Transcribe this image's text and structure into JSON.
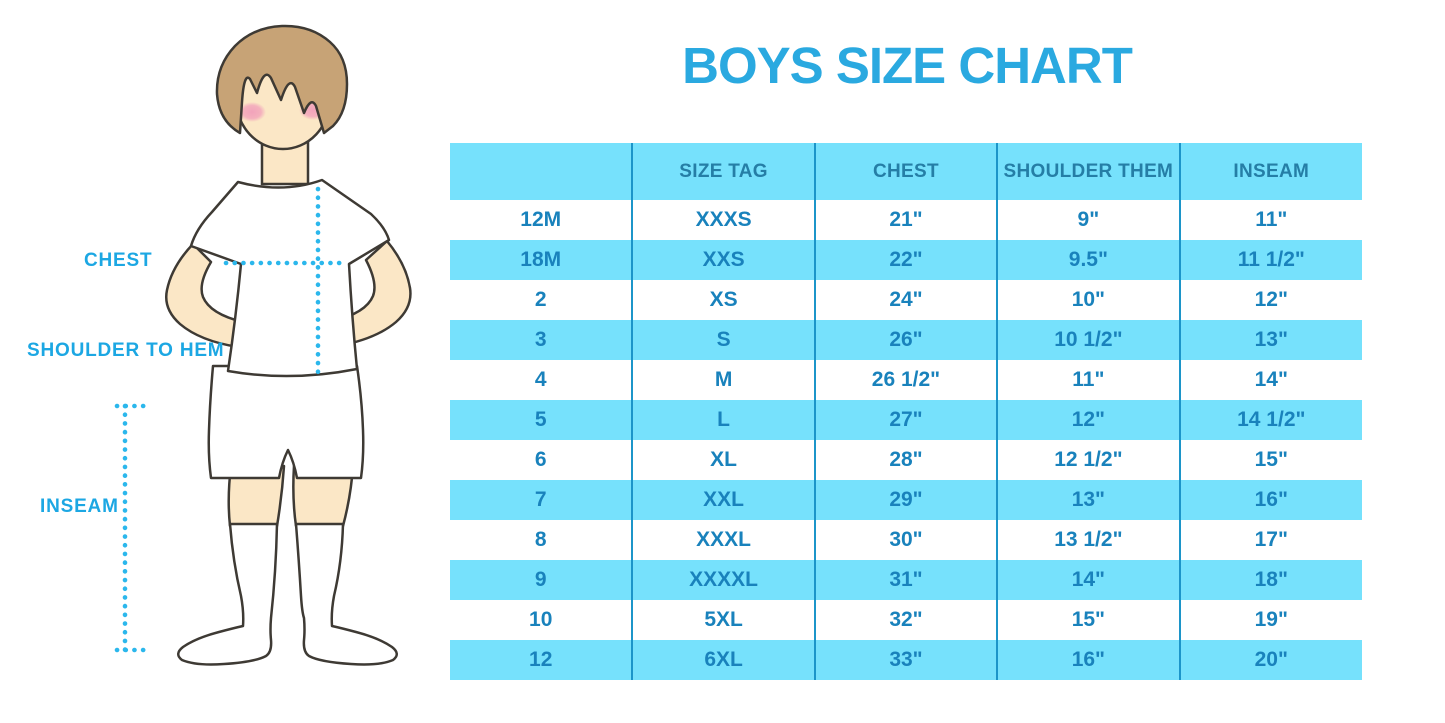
{
  "title": "BOYS SIZE CHART",
  "figure_labels": {
    "chest": "CHEST",
    "shoulder_to_hem": "SHOULDER TO HEM",
    "inseam": "INSEAM"
  },
  "colors": {
    "title_blue": "#2AA9E0",
    "label_blue": "#1CA7E3",
    "dotted_line_cyan": "#2BB7EC",
    "row_blue": "#76E1FC",
    "table_text_blue": "#1982BC",
    "column_divider_blue": "#1C95C9",
    "hair_brown": "#C7A376",
    "skin": "#FBE7C6",
    "blush_pink": "#F2A3BB"
  },
  "chart_data": {
    "type": "table",
    "title": "BOYS SIZE CHART",
    "columns": [
      "",
      "SIZE TAG",
      "CHEST",
      "SHOULDER THEM",
      "INSEAM"
    ],
    "rows": [
      [
        "12M",
        "XXXS",
        "21\"",
        "9\"",
        "11\""
      ],
      [
        "18M",
        "XXS",
        "22\"",
        "9.5\"",
        "11 1/2\""
      ],
      [
        "2",
        "XS",
        "24\"",
        "10\"",
        "12\""
      ],
      [
        "3",
        "S",
        "26\"",
        "10 1/2\"",
        "13\""
      ],
      [
        "4",
        "M",
        "26 1/2\"",
        "11\"",
        "14\""
      ],
      [
        "5",
        "L",
        "27\"",
        "12\"",
        "14 1/2\""
      ],
      [
        "6",
        "XL",
        "28\"",
        "12 1/2\"",
        "15\""
      ],
      [
        "7",
        "XXL",
        "29\"",
        "13\"",
        "16\""
      ],
      [
        "8",
        "XXXL",
        "30\"",
        "13 1/2\"",
        "17\""
      ],
      [
        "9",
        "XXXXL",
        "31\"",
        "14\"",
        "18\""
      ],
      [
        "10",
        "5XL",
        "32\"",
        "15\"",
        "19\""
      ],
      [
        "12",
        "6XL",
        "33\"",
        "16\"",
        "20\""
      ]
    ],
    "layout": {
      "header_background": "#76E1FC",
      "alternating_row_background": [
        "#FFFFFF",
        "#76E1FC"
      ],
      "grid": "vertical-dividers-only"
    }
  }
}
